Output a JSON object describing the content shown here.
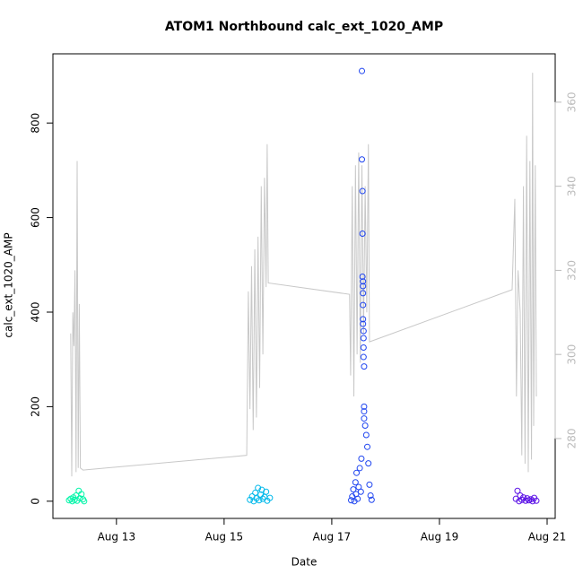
{
  "chart_data": {
    "type": "scatter",
    "title": "ATOM1 Northbound calc_ext_1020_AMP",
    "x_label": "Date",
    "y_label": "calc_ext_1020_AMP",
    "xlim": [
      11.82,
      21.15
    ],
    "xticks": [
      {
        "value": 13,
        "label": "Aug 13"
      },
      {
        "value": 15,
        "label": "Aug 15"
      },
      {
        "value": 17,
        "label": "Aug 17"
      },
      {
        "value": 19,
        "label": "Aug 19"
      },
      {
        "value": 21,
        "label": "Aug 21"
      }
    ],
    "ylim": [
      -36.4,
      946.4
    ],
    "yticks": [
      0,
      200,
      400,
      600,
      800
    ],
    "y2lim": [
      261,
      371.5
    ],
    "y2ticks": [
      280,
      300,
      320,
      340,
      360
    ],
    "y2_color": "#bbbbbb",
    "series": [
      {
        "type": "scatter",
        "color": "#00f5a8",
        "x": [
          12.12,
          12.15,
          12.18,
          12.2,
          12.22,
          12.25,
          12.27,
          12.3,
          12.32,
          12.35,
          12.38,
          12.4
        ],
        "values": [
          2,
          5,
          0,
          8,
          3,
          12,
          1,
          22,
          6,
          15,
          4,
          0
        ]
      },
      {
        "type": "scatter",
        "color": "#00b8ea",
        "x": [
          15.48,
          15.52,
          15.55,
          15.58,
          15.6,
          15.63,
          15.65,
          15.68,
          15.7,
          15.72,
          15.75,
          15.78,
          15.8,
          15.85
        ],
        "values": [
          3,
          10,
          0,
          18,
          6,
          28,
          2,
          14,
          24,
          5,
          9,
          20,
          1,
          7
        ]
      },
      {
        "type": "scatter",
        "color": "#1f45f0",
        "x": [
          17.36,
          17.38,
          17.4,
          17.42,
          17.44,
          17.45,
          17.46,
          17.48,
          17.5,
          17.52,
          17.54,
          17.55,
          17.56,
          17.56,
          17.57,
          17.57,
          17.57,
          17.58,
          17.58,
          17.58,
          17.58,
          17.58,
          17.58,
          17.59,
          17.59,
          17.59,
          17.59,
          17.6,
          17.6,
          17.6,
          17.6,
          17.62,
          17.64,
          17.66,
          17.68,
          17.7,
          17.72,
          17.74
        ],
        "values": [
          2,
          10,
          25,
          0,
          40,
          15,
          60,
          5,
          30,
          70,
          20,
          90,
          910,
          723,
          656,
          566,
          475,
          465,
          455,
          440,
          415,
          385,
          375,
          360,
          345,
          325,
          305,
          285,
          200,
          190,
          175,
          160,
          140,
          115,
          80,
          35,
          12,
          3
        ]
      },
      {
        "type": "scatter",
        "color": "#5a10e6",
        "x": [
          20.42,
          20.45,
          20.48,
          20.5,
          20.53,
          20.56,
          20.6,
          20.63,
          20.66,
          20.7,
          20.73,
          20.76,
          20.8
        ],
        "values": [
          5,
          22,
          0,
          12,
          3,
          8,
          1,
          6,
          2,
          4,
          0,
          7,
          1
        ]
      },
      {
        "type": "line",
        "axis": "y2",
        "color": "#c8c8c8",
        "x": [
          12.15,
          12.17,
          12.19,
          12.21,
          12.23,
          12.25,
          12.27,
          12.29,
          12.31,
          12.33,
          12.38,
          15.42,
          15.45,
          15.48,
          15.51,
          15.54,
          15.57,
          15.6,
          15.63,
          15.66,
          15.69,
          15.72,
          15.75,
          15.78,
          15.8,
          15.82,
          17.33,
          17.35,
          17.38,
          17.41,
          17.44,
          17.47,
          17.5,
          17.53,
          17.56,
          17.59,
          17.62,
          17.65,
          17.68,
          17.7,
          20.35,
          20.4,
          20.43,
          20.46,
          20.5,
          20.53,
          20.56,
          20.59,
          20.62,
          20.65,
          20.68,
          20.71,
          20.73,
          20.75,
          20.78,
          20.8
        ],
        "values": [
          305,
          271,
          310,
          302,
          320,
          272,
          346,
          273,
          312,
          273,
          272.5,
          276,
          315,
          287,
          321,
          282,
          325,
          285,
          328,
          292,
          340,
          300,
          342,
          316,
          350,
          317,
          314.3,
          295,
          340,
          290,
          345,
          300,
          348,
          298,
          345,
          305,
          340,
          310,
          350,
          303,
          315.4,
          337,
          290,
          320,
          310,
          276,
          340,
          274,
          352,
          272,
          346,
          275,
          367,
          283,
          345,
          290
        ]
      }
    ]
  }
}
